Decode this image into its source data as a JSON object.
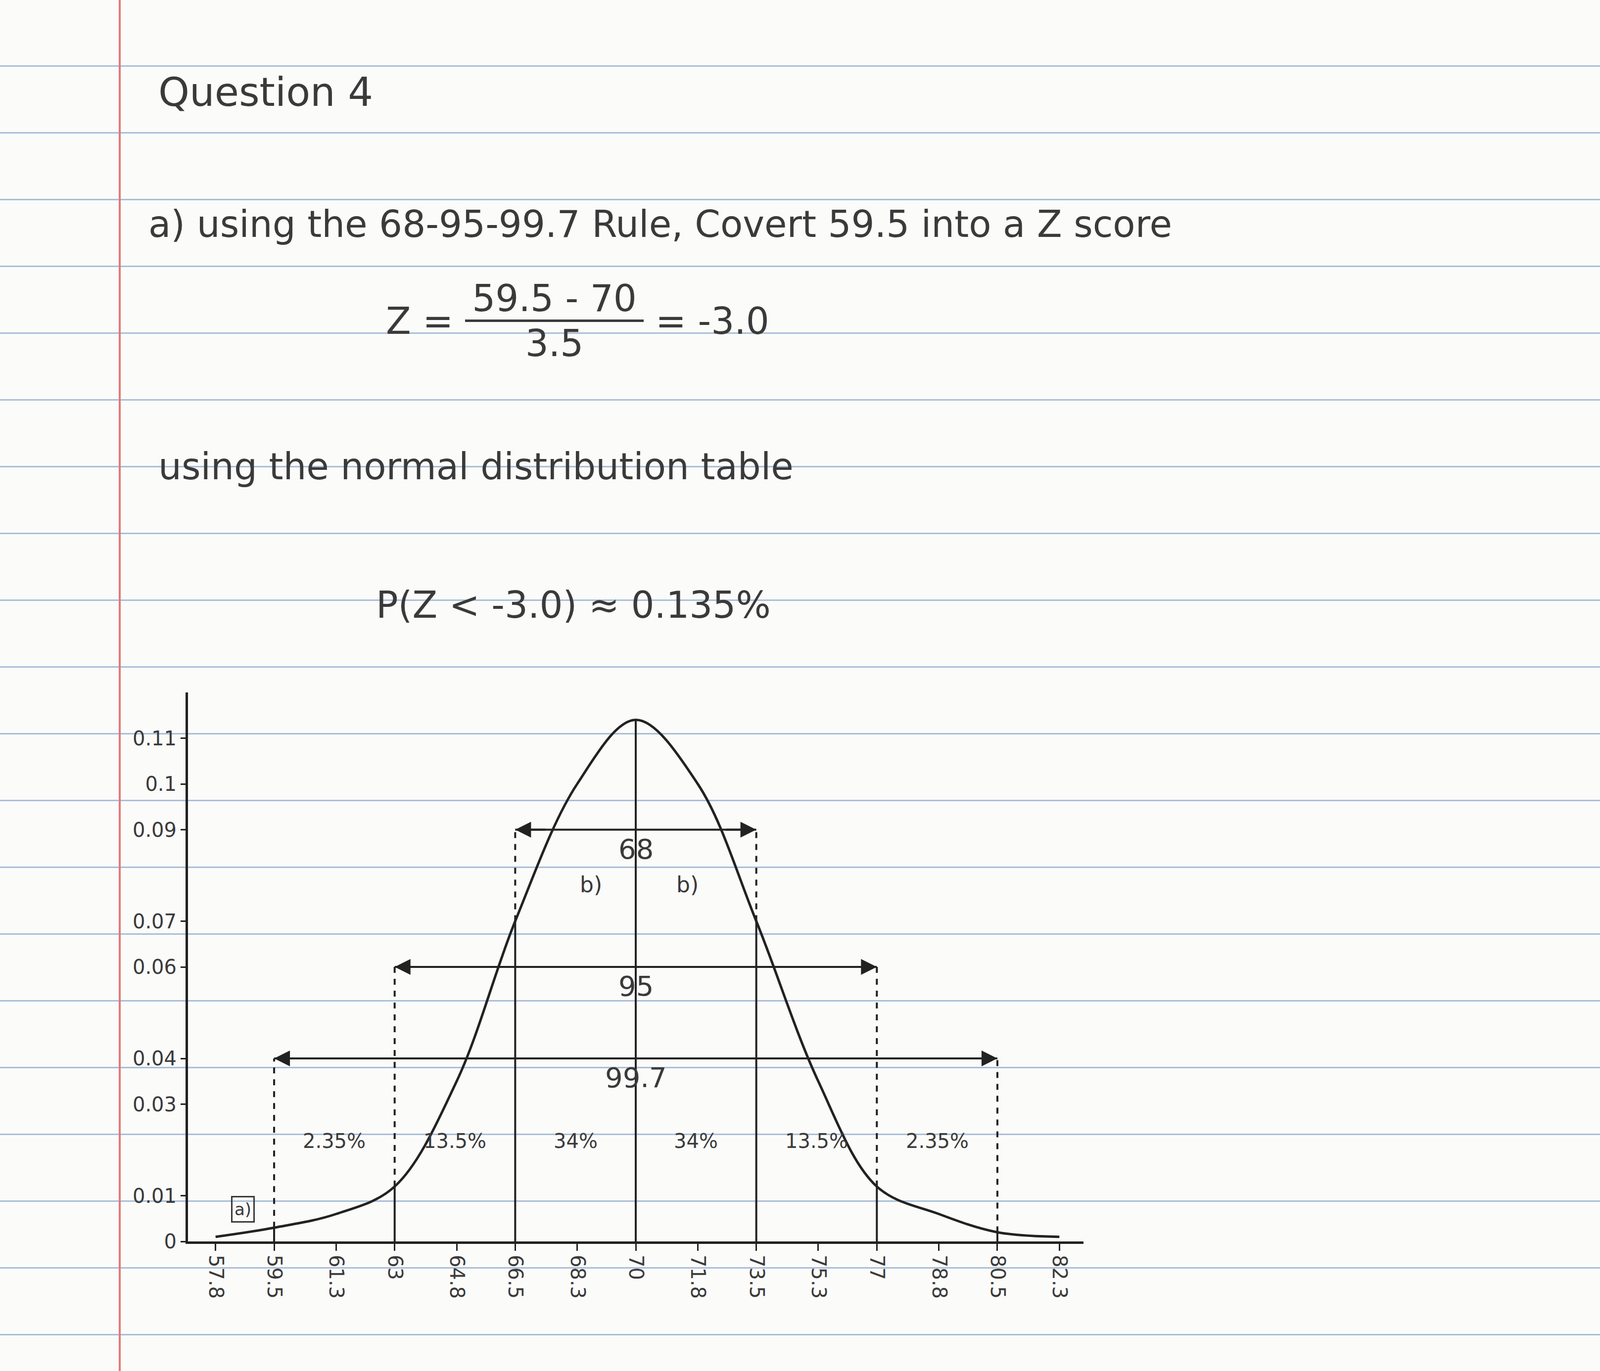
{
  "page": {
    "title": "Question 4",
    "lines": [
      "a) using the 68-95-99.7 Rule, Covert 59.5 into a Z score",
      "using the normal distribution table",
      "P(Z < -3.0) ≈ 0.135%"
    ],
    "formula": {
      "lhs": "Z =",
      "numerator": "59.5 - 70",
      "denominator": "3.5",
      "result": "= -3.0"
    }
  },
  "chart_data": {
    "type": "line",
    "color": "#222222",
    "line_style": "solid",
    "grid": false,
    "x": [
      57.8,
      59.5,
      61.3,
      63,
      64.8,
      66.5,
      68.3,
      70,
      71.8,
      73.5,
      75.3,
      77,
      78.8,
      80.5,
      82.3
    ],
    "values": [
      0.001,
      0.003,
      0.006,
      0.012,
      0.035,
      0.07,
      0.1,
      0.114,
      0.1,
      0.07,
      0.035,
      0.012,
      0.006,
      0.002,
      0.001
    ],
    "xlim": [
      57,
      83
    ],
    "ylim": [
      0,
      0.12
    ],
    "xticks": [
      57.8,
      59.5,
      61.3,
      63,
      64.8,
      66.5,
      68.3,
      70,
      71.8,
      73.5,
      75.3,
      77,
      78.8,
      80.5,
      82.3
    ],
    "yticks": [
      0,
      0.01,
      0.03,
      0.04,
      0.06,
      0.07,
      0.09,
      0.1,
      0.11
    ],
    "boundaries": [
      59.5,
      63,
      66.5,
      70,
      73.5,
      77,
      80.5
    ],
    "intervals": [
      {
        "label": "68",
        "from": 66.5,
        "to": 73.5,
        "level": 0.09
      },
      {
        "label": "95",
        "from": 63,
        "to": 77,
        "level": 0.06
      },
      {
        "label": "99.7",
        "from": 59.5,
        "to": 80.5,
        "level": 0.04
      }
    ],
    "region_labels": [
      {
        "text": "2.35%",
        "x": 61.25,
        "y": 0.022
      },
      {
        "text": "13.5%",
        "x": 64.75,
        "y": 0.022
      },
      {
        "text": "34%",
        "x": 68.25,
        "y": 0.022
      },
      {
        "text": "34%",
        "x": 71.75,
        "y": 0.022
      },
      {
        "text": "13.5%",
        "x": 75.25,
        "y": 0.022
      },
      {
        "text": "2.35%",
        "x": 78.75,
        "y": 0.022
      }
    ],
    "annotations": [
      {
        "text": "a)",
        "x": 58.6,
        "y": 0.007
      },
      {
        "text": "b)",
        "x": 68.7,
        "y": 0.078
      },
      {
        "text": "b)",
        "x": 71.5,
        "y": 0.078
      }
    ]
  }
}
